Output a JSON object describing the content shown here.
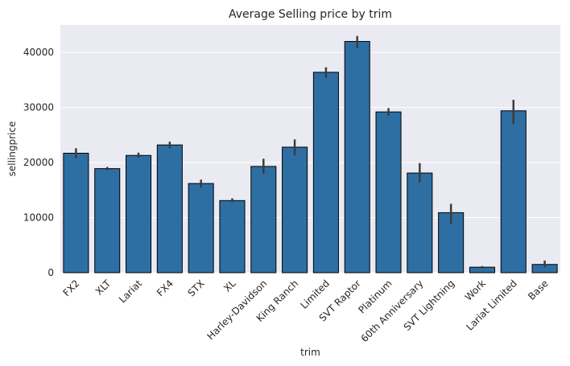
{
  "chart_data": {
    "type": "bar",
    "title": "Average Selling price by trim",
    "xlabel": "trim",
    "ylabel": "sellingprice",
    "categories": [
      "FX2",
      "XLT",
      "Lariat",
      "FX4",
      "STX",
      "XL",
      "Harley-Davidson",
      "King Ranch",
      "Limited",
      "SVT Raptor",
      "Platinum",
      "60th Anniversary",
      "SVT Lightning",
      "Work",
      "Lariat Limited",
      "Base"
    ],
    "values": [
      21700,
      18900,
      21300,
      23200,
      16200,
      13100,
      19300,
      22800,
      36400,
      42000,
      29200,
      18100,
      10900,
      1000,
      29400,
      1500
    ],
    "error_low": [
      20800,
      18600,
      20900,
      22600,
      15500,
      12800,
      18000,
      21300,
      35400,
      40800,
      28500,
      16400,
      8900,
      800,
      27000,
      1000
    ],
    "error_high": [
      22600,
      19200,
      21800,
      23800,
      16900,
      13500,
      20700,
      24200,
      37300,
      43000,
      29900,
      19900,
      12500,
      1200,
      31400,
      2200
    ],
    "ylim": [
      0,
      45000
    ],
    "yticks": [
      0,
      10000,
      20000,
      30000,
      40000
    ],
    "grid": true,
    "bar_color": "#2e6fa3",
    "edge_color": "#000000",
    "error_color": "#3c3c3c",
    "plot_background": "#eaeaf2",
    "grid_color": "#ffffff"
  }
}
